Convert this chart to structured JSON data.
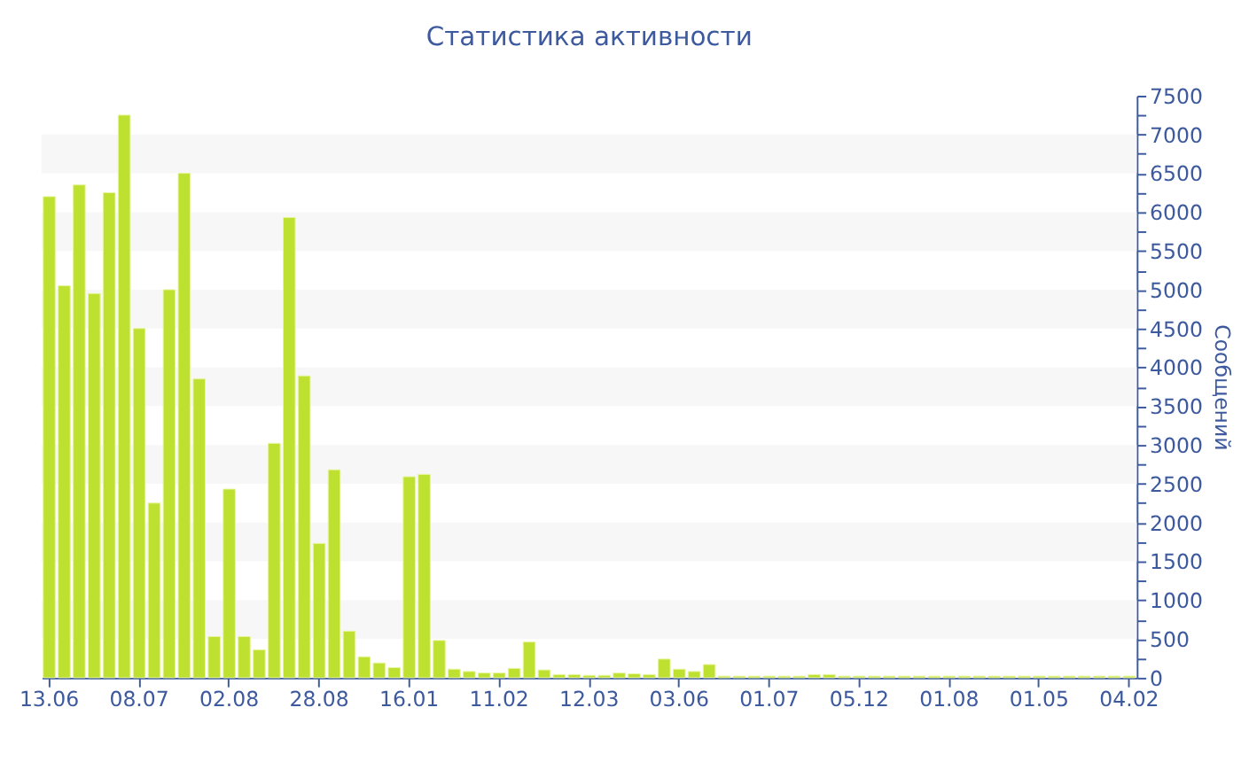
{
  "chart_data": {
    "type": "bar",
    "title": "Статистика активности",
    "ylabel": "Сообщений",
    "color": "#bde031",
    "categories": [
      "13.06",
      null,
      null,
      null,
      null,
      null,
      "08.07",
      null,
      null,
      null,
      null,
      null,
      "02.08",
      null,
      null,
      null,
      null,
      null,
      "28.08",
      null,
      null,
      null,
      null,
      null,
      "16.01",
      null,
      null,
      null,
      null,
      null,
      "11.02",
      null,
      null,
      null,
      null,
      null,
      "12.03",
      null,
      null,
      null,
      null,
      null,
      "03.06",
      null,
      null,
      null,
      null,
      null,
      "01.07",
      null,
      null,
      null,
      null,
      null,
      "05.12",
      null,
      null,
      null,
      null,
      null,
      "01.08",
      null,
      null,
      null,
      null,
      null,
      "01.05",
      null,
      null,
      null,
      null,
      null,
      "04.02"
    ],
    "values": [
      6200,
      5050,
      6350,
      4950,
      6250,
      7250,
      4500,
      2250,
      5000,
      6500,
      3850,
      530,
      2430,
      530,
      360,
      3020,
      5930,
      3890,
      1730,
      2680,
      600,
      270,
      190,
      130,
      2590,
      2620,
      480,
      110,
      80,
      60,
      60,
      120,
      460,
      100,
      40,
      40,
      30,
      30,
      60,
      50,
      40,
      240,
      110,
      80,
      170,
      20,
      20,
      20,
      20,
      20,
      20,
      40,
      40,
      20,
      20,
      20,
      20,
      20,
      20,
      20,
      20,
      20,
      20,
      20,
      20,
      20,
      20,
      20,
      20,
      20,
      20,
      20,
      20
    ],
    "ylim": [
      0,
      7500
    ],
    "yticks": [
      0,
      {
        "value": 250,
        "label": null
      },
      500,
      {
        "value": 750,
        "label": null
      },
      1000,
      {
        "value": 1250,
        "label": null
      },
      1500,
      {
        "value": 1750,
        "label": null
      },
      2000,
      {
        "value": 2250,
        "label": null
      },
      2500,
      {
        "value": 2750,
        "label": null
      },
      3000,
      {
        "value": 3250,
        "label": null
      },
      3500,
      {
        "value": 3750,
        "label": null
      },
      4000,
      {
        "value": 4250,
        "label": null
      },
      4500,
      {
        "value": 4750,
        "label": null
      },
      5000,
      {
        "value": 5250,
        "label": null
      },
      5500,
      {
        "value": 5750,
        "label": null
      },
      6000,
      {
        "value": 6250,
        "label": null
      },
      6500,
      {
        "value": 6750,
        "label": null
      },
      7000,
      {
        "value": 7250,
        "label": null
      },
      7500
    ],
    "bands": [
      {
        "axis": "y",
        "from": 500,
        "to": 1000,
        "color": "#f7f7f7"
      },
      {
        "axis": "y",
        "from": 1500,
        "to": 2000,
        "color": "#f7f7f7"
      },
      {
        "axis": "y",
        "from": 2500,
        "to": 3000,
        "color": "#f7f7f7"
      },
      {
        "axis": "y",
        "from": 3500,
        "to": 4000,
        "color": "#f7f7f7"
      },
      {
        "axis": "y",
        "from": 4500,
        "to": 5000,
        "color": "#f7f7f7"
      },
      {
        "axis": "y",
        "from": 5500,
        "to": 6000,
        "color": "#f7f7f7"
      },
      {
        "axis": "y",
        "from": 6500,
        "to": 7000,
        "color": "#f7f7f7"
      }
    ]
  }
}
